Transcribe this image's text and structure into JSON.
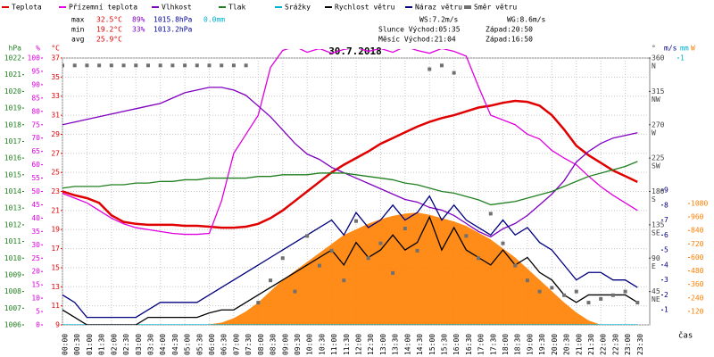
{
  "chart_data": {
    "type": "line",
    "title": "30.7.2018",
    "x_label": "čas",
    "grid": true,
    "categories": [
      "00:00",
      "00:30",
      "01:00",
      "01:30",
      "02:00",
      "02:30",
      "03:00",
      "03:30",
      "04:00",
      "04:30",
      "05:00",
      "05:30",
      "06:00",
      "06:30",
      "07:00",
      "07:30",
      "08:00",
      "08:30",
      "09:00",
      "09:30",
      "10:00",
      "10:30",
      "11:00",
      "11:30",
      "12:00",
      "12:30",
      "13:00",
      "13:30",
      "14:00",
      "14:30",
      "15:00",
      "15:30",
      "16:00",
      "16:30",
      "17:00",
      "17:30",
      "18:00",
      "18:30",
      "19:00",
      "19:30",
      "20:00",
      "20:30",
      "21:00",
      "21:30",
      "22:00",
      "22:30",
      "23:00",
      "23:30"
    ],
    "axes": [
      {
        "key": "p",
        "unit": "hPa",
        "lim": [
          1006,
          1022
        ],
        "ticks": [
          1006,
          1007,
          1008,
          1009,
          1010,
          1011,
          1012,
          1013,
          1014,
          1015,
          1016,
          1017,
          1018,
          1019,
          1020,
          1021,
          1022
        ]
      },
      {
        "key": "h",
        "unit": "%",
        "lim": [
          0,
          100
        ],
        "ticks": [
          0,
          5,
          10,
          15,
          20,
          25,
          30,
          35,
          40,
          45,
          50,
          55,
          60,
          65,
          70,
          75,
          80,
          85,
          90,
          95,
          100
        ]
      },
      {
        "key": "t",
        "unit": "°C",
        "lim": [
          9,
          37
        ],
        "ticks": [
          9,
          11,
          13,
          15,
          17,
          19,
          21,
          23,
          25,
          27,
          29,
          31,
          33,
          35,
          37
        ]
      },
      {
        "key": "d",
        "unit": "°",
        "lim": [
          0,
          360
        ],
        "ticks": [
          45,
          90,
          135,
          180,
          225,
          270,
          315,
          360
        ],
        "compass": [
          "NE",
          "E",
          "SE",
          "S",
          "SW",
          "W",
          "NW",
          "N"
        ]
      },
      {
        "key": "w",
        "unit": "m/s",
        "lim": [
          0,
          9
        ],
        "ticks": [
          1,
          2,
          3,
          4,
          5,
          6,
          7,
          8,
          9
        ]
      },
      {
        "key": "mm",
        "unit": "mm",
        "lim": [
          0,
          1
        ],
        "ticks": [
          1
        ]
      },
      {
        "key": "s",
        "unit": "W",
        "lim": [
          0,
          1080
        ],
        "ticks": [
          120,
          240,
          360,
          480,
          600,
          720,
          840,
          960,
          1080
        ]
      }
    ],
    "stats_left": [
      [
        "max",
        "32.5°C",
        "89%",
        "1015.8hPa",
        "0.0mm"
      ],
      [
        "min",
        "19.2°C",
        "33%",
        "1013.2hPa"
      ],
      [
        "avg",
        "25.9°C"
      ]
    ],
    "stats_right": [
      [
        "WS:7.2m/s",
        "WG:8.6m/s"
      ],
      [
        "Slunce Východ:05:35",
        "Západ:20:50"
      ],
      [
        "Měsíc Východ:21:04",
        "Západ:16:50"
      ]
    ],
    "solar": {
      "color": "#ff7f00",
      "axis": "s",
      "values": [
        0,
        0,
        0,
        0,
        0,
        0,
        0,
        0,
        0,
        0,
        0,
        0,
        5,
        20,
        60,
        120,
        200,
        300,
        400,
        480,
        560,
        640,
        720,
        800,
        850,
        900,
        940,
        970,
        990,
        1000,
        980,
        950,
        920,
        880,
        820,
        760,
        680,
        600,
        500,
        400,
        300,
        200,
        110,
        40,
        0,
        0,
        0,
        0
      ]
    },
    "series": [
      {
        "name": "Teplota",
        "color": "#e00000",
        "axis": "t",
        "values": [
          23.0,
          22.6,
          22.3,
          21.8,
          20.5,
          19.8,
          19.6,
          19.5,
          19.5,
          19.5,
          19.4,
          19.4,
          19.3,
          19.2,
          19.2,
          19.3,
          19.6,
          20.2,
          21.0,
          22.0,
          23.0,
          24.0,
          25.0,
          25.8,
          26.5,
          27.2,
          28.0,
          28.6,
          29.2,
          29.8,
          30.3,
          30.7,
          31.0,
          31.4,
          31.8,
          32.0,
          32.3,
          32.5,
          32.4,
          32.0,
          31.0,
          29.5,
          27.8,
          26.8,
          26.0,
          25.2,
          24.6,
          24.0
        ]
      },
      {
        "name": "Přízemní teplota",
        "color": "#e000e0",
        "axis": "t",
        "values": [
          22.8,
          22.3,
          21.8,
          21.0,
          20.2,
          19.6,
          19.2,
          19.0,
          18.8,
          18.6,
          18.5,
          18.5,
          18.6,
          22,
          27,
          29,
          31,
          36,
          37.8,
          38.2,
          37.6,
          38.0,
          37.5,
          37.9,
          38.1,
          37.7,
          38.0,
          37.6,
          38.2,
          37.8,
          37.5,
          38.0,
          37.7,
          37.2,
          34,
          31,
          30.5,
          30,
          29,
          28.5,
          27.3,
          26.5,
          25.8,
          24.6,
          23.5,
          22.6,
          21.8,
          21.0
        ]
      },
      {
        "name": "Vlhkost",
        "color": "#8000c0",
        "axis": "h",
        "values": [
          75,
          76,
          77,
          78,
          79,
          80,
          81,
          82,
          83,
          85,
          87,
          88,
          89,
          89,
          88,
          86,
          82,
          78,
          73,
          68,
          64,
          62,
          59,
          57,
          55,
          53,
          51,
          49,
          47,
          46,
          44,
          43,
          41,
          38,
          35,
          33,
          36,
          38,
          41,
          45,
          49,
          54,
          61,
          65,
          68,
          70,
          71,
          72
        ]
      },
      {
        "name": "Tlak",
        "color": "#208020",
        "axis": "p",
        "values": [
          1014.2,
          1014.3,
          1014.3,
          1014.3,
          1014.4,
          1014.4,
          1014.5,
          1014.5,
          1014.6,
          1014.6,
          1014.7,
          1014.7,
          1014.8,
          1014.8,
          1014.8,
          1014.8,
          1014.9,
          1014.9,
          1015.0,
          1015.0,
          1015.0,
          1015.1,
          1015.1,
          1015.1,
          1015.0,
          1014.9,
          1014.8,
          1014.7,
          1014.5,
          1014.4,
          1014.2,
          1014.0,
          1013.9,
          1013.7,
          1013.5,
          1013.2,
          1013.3,
          1013.4,
          1013.6,
          1013.8,
          1014.0,
          1014.3,
          1014.6,
          1014.9,
          1015.1,
          1015.3,
          1015.5,
          1015.8
        ]
      },
      {
        "name": "Srážky",
        "color": "#00b0d0",
        "axis": "mm",
        "values": [
          0,
          0,
          0,
          0,
          0,
          0,
          0,
          0,
          0,
          0,
          0,
          0,
          0,
          0,
          0,
          0,
          0,
          0,
          0,
          0,
          0,
          0,
          0,
          0,
          0,
          0,
          0,
          0,
          0,
          0,
          0,
          0,
          0,
          0,
          0,
          0,
          0,
          0,
          0,
          0,
          0,
          0,
          0,
          0,
          0,
          0,
          0,
          0
        ]
      },
      {
        "name": "Rychlost větru",
        "color": "#000000",
        "axis": "w",
        "values": [
          1,
          0.5,
          0,
          0,
          0,
          0,
          0,
          0.5,
          0.5,
          0.5,
          0.5,
          0.5,
          0.8,
          1,
          1,
          1.5,
          2,
          2.5,
          3,
          3.5,
          4,
          4.5,
          5,
          4,
          5.5,
          4.5,
          5,
          6,
          5,
          5.5,
          7.2,
          5,
          6.5,
          5,
          4.5,
          4,
          5,
          4,
          4.5,
          3.5,
          3,
          2,
          1.5,
          2,
          2,
          2,
          2,
          1.5
        ]
      },
      {
        "name": "Náraz větru",
        "color": "#000080",
        "axis": "w",
        "values": [
          2,
          1.5,
          0.5,
          0.5,
          0.5,
          0.5,
          0.5,
          1,
          1.5,
          1.5,
          1.5,
          1.5,
          2,
          2.5,
          3,
          3.5,
          4,
          4.5,
          5,
          5.5,
          6,
          6.5,
          7,
          6,
          7.5,
          6.5,
          7,
          8,
          7,
          7.5,
          8.6,
          7,
          8,
          7,
          6.5,
          6,
          7,
          6,
          6.5,
          5.5,
          5,
          4,
          3,
          3.5,
          3.5,
          3,
          3,
          2.5
        ]
      },
      {
        "name": "Směr větru",
        "color": "#707070",
        "axis": "d",
        "style": "square",
        "values": [
          350,
          350,
          350,
          350,
          350,
          350,
          350,
          350,
          350,
          350,
          350,
          350,
          350,
          350,
          350,
          350,
          30,
          60,
          90,
          45,
          120,
          80,
          100,
          60,
          140,
          90,
          110,
          70,
          130,
          100,
          345,
          350,
          340,
          120,
          90,
          150,
          110,
          80,
          60,
          45,
          50,
          40,
          45,
          30,
          35,
          40,
          45,
          30
        ]
      }
    ]
  }
}
